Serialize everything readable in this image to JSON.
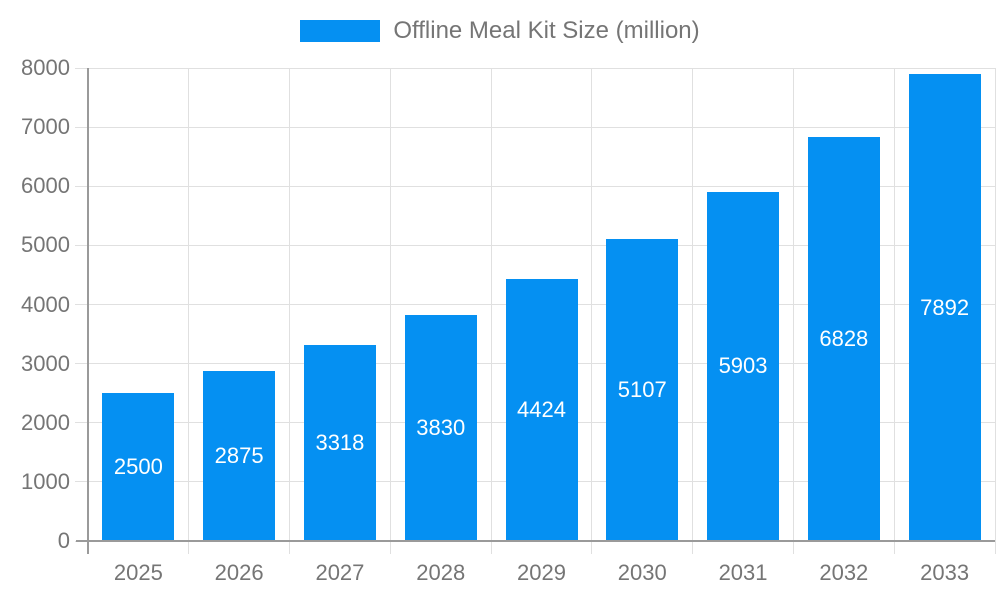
{
  "chart_data": {
    "type": "bar",
    "title": "Offline Meal Kit Size (million)",
    "categories": [
      "2025",
      "2026",
      "2027",
      "2028",
      "2029",
      "2030",
      "2031",
      "2032",
      "2033"
    ],
    "series": [
      {
        "name": "Offline Meal Kit Size (million)",
        "values": [
          2500,
          2875,
          3318,
          3830,
          4424,
          5107,
          5903,
          6828,
          7892
        ]
      }
    ],
    "xlabel": "",
    "ylabel": "",
    "ylim": [
      0,
      8000
    ],
    "ytick_step": 1000,
    "grid": true,
    "legend_position": "top-center",
    "value_labels": "inside-center-white",
    "colors": {
      "bar": "#0590f2",
      "grid": "#e0e0e0",
      "axis_line": "#9a9a9a",
      "axis_text": "#757575",
      "bar_label_text": "#ffffff",
      "background": "#ffffff"
    }
  }
}
